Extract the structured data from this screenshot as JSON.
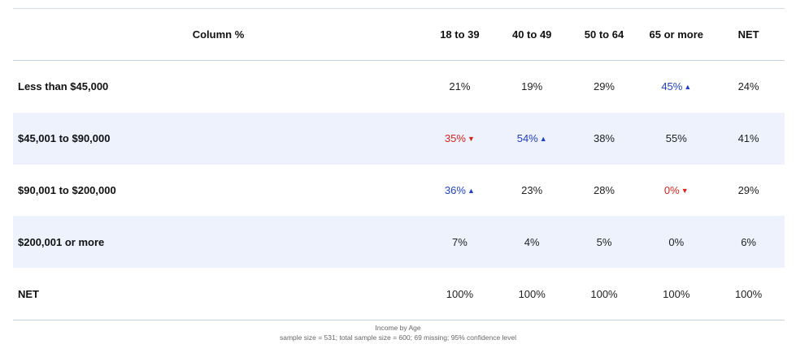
{
  "table": {
    "corner_label": "Column %",
    "columns": [
      "18 to 39",
      "40 to 49",
      "50 to 64",
      "65 or more",
      "NET"
    ],
    "rows": [
      {
        "label": "Less than $45,000",
        "cells": [
          {
            "value": "21%",
            "sig": "none"
          },
          {
            "value": "19%",
            "sig": "none"
          },
          {
            "value": "29%",
            "sig": "none"
          },
          {
            "value": "45%",
            "sig": "up"
          },
          {
            "value": "24%",
            "sig": "none"
          }
        ]
      },
      {
        "label": "$45,001 to $90,000",
        "cells": [
          {
            "value": "35%",
            "sig": "down"
          },
          {
            "value": "54%",
            "sig": "up"
          },
          {
            "value": "38%",
            "sig": "none"
          },
          {
            "value": "55%",
            "sig": "none"
          },
          {
            "value": "41%",
            "sig": "none"
          }
        ]
      },
      {
        "label": "$90,001 to $200,000",
        "cells": [
          {
            "value": "36%",
            "sig": "up"
          },
          {
            "value": "23%",
            "sig": "none"
          },
          {
            "value": "28%",
            "sig": "none"
          },
          {
            "value": "0%",
            "sig": "down"
          },
          {
            "value": "29%",
            "sig": "none"
          }
        ]
      },
      {
        "label": "$200,001 or more",
        "cells": [
          {
            "value": "7%",
            "sig": "none"
          },
          {
            "value": "4%",
            "sig": "none"
          },
          {
            "value": "5%",
            "sig": "none"
          },
          {
            "value": "0%",
            "sig": "none"
          },
          {
            "value": "6%",
            "sig": "none"
          }
        ]
      },
      {
        "label": "NET",
        "cells": [
          {
            "value": "100%",
            "sig": "none"
          },
          {
            "value": "100%",
            "sig": "none"
          },
          {
            "value": "100%",
            "sig": "none"
          },
          {
            "value": "100%",
            "sig": "none"
          },
          {
            "value": "100%",
            "sig": "none"
          }
        ]
      }
    ]
  },
  "footer": {
    "title": "Income by Age",
    "note": "sample size = 531; total sample size = 600; 69 missing; 95% confidence level"
  },
  "colors": {
    "significant_up": "#1f3fc9",
    "significant_down": "#d8231c",
    "row_shading": "#edf2fd"
  },
  "icons": {
    "up": "arrow-up-icon",
    "down": "arrow-down-icon"
  }
}
